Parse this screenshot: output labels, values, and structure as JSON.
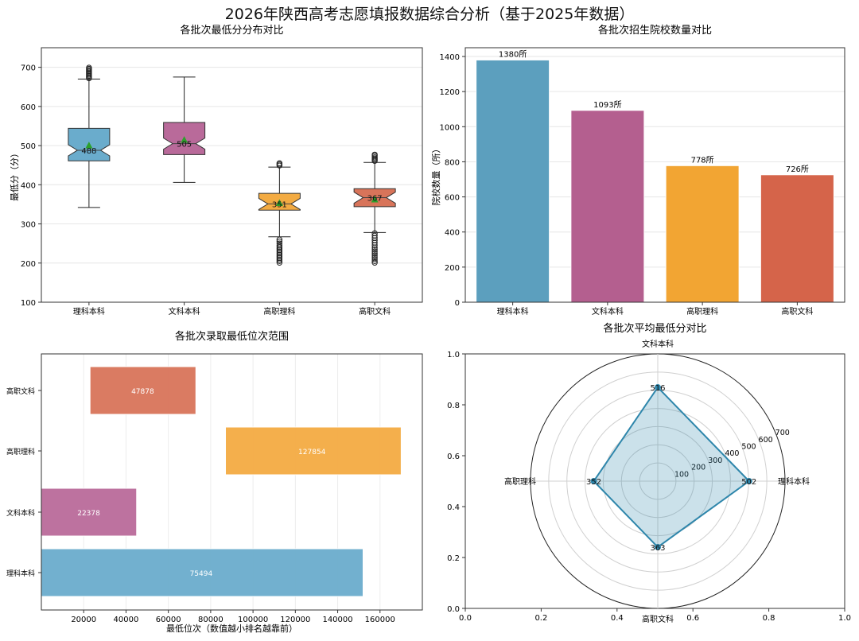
{
  "title": "2026年陕西高考志愿填报数据综合分析（基于2025年数据）",
  "chart_data": [
    {
      "type": "box",
      "title": "各批次最低分分布对比",
      "ylabel": "最低分（分）",
      "ylim": [
        100,
        750
      ],
      "yticks": [
        100,
        200,
        300,
        400,
        500,
        600,
        700
      ],
      "grid": true,
      "categories": [
        "理科本科",
        "文科本科",
        "高职理科",
        "高职文科"
      ],
      "colors": [
        "#6aaccc",
        "#b96a9a",
        "#f3ab42",
        "#d8745a"
      ],
      "boxes": [
        {
          "whisker_low": 342,
          "q1": 461,
          "median": 488,
          "q3": 544,
          "whisker_high": 670,
          "mean": 500,
          "outliers": [
            672,
            675,
            678,
            681,
            684,
            687,
            690,
            693,
            696,
            699
          ]
        },
        {
          "whisker_low": 406,
          "q1": 477,
          "median": 505,
          "q3": 559,
          "whisker_high": 675,
          "mean": 514,
          "outliers": []
        },
        {
          "whisker_low": 267,
          "q1": 335,
          "median": 351,
          "q3": 378,
          "whisker_high": 445,
          "mean": 353,
          "outliers": [
            449,
            452,
            455,
            201,
            205,
            209,
            213,
            217,
            221,
            225,
            229,
            233,
            237,
            241,
            245,
            250,
            255,
            260
          ]
        },
        {
          "whisker_low": 278,
          "q1": 344,
          "median": 367,
          "q3": 390,
          "whisker_high": 457,
          "mean": 362,
          "outliers": [
            461,
            464,
            467,
            470,
            474,
            477,
            201,
            205,
            210,
            215,
            220,
            225,
            230,
            235,
            240,
            246,
            252,
            258,
            264,
            270,
            276
          ]
        }
      ],
      "median_labels": [
        "488",
        "505",
        "351",
        "367"
      ]
    },
    {
      "type": "bar",
      "title": "各批次招生院校数量对比",
      "ylabel": "院校数量（所）",
      "ylim": [
        0,
        1450
      ],
      "yticks": [
        0,
        200,
        400,
        600,
        800,
        1000,
        1200,
        1400
      ],
      "grid": true,
      "categories": [
        "理科本科",
        "文科本科",
        "高职理科",
        "高职文科"
      ],
      "values": [
        1380,
        1093,
        778,
        726
      ],
      "data_labels": [
        "1380所",
        "1093所",
        "778所",
        "726所"
      ],
      "colors": [
        "#5c9fbe",
        "#b45f8f",
        "#f2a533",
        "#d5644a"
      ]
    },
    {
      "type": "bar",
      "title": "各批次录取最低位次范围",
      "xlabel": "最低位次（数值越小排名越靠前）",
      "xlim": [
        0,
        180000
      ],
      "xticks": [
        20000,
        40000,
        60000,
        80000,
        100000,
        120000,
        140000,
        160000
      ],
      "grid": true,
      "categories": [
        "理科本科",
        "文科本科",
        "高职理科",
        "高职文科"
      ],
      "ranges": [
        [
          0,
          152000
        ],
        [
          0,
          45000
        ],
        [
          87000,
          170000
        ],
        [
          23000,
          73000
        ]
      ],
      "medians": [
        75494,
        22378,
        127854,
        47878
      ],
      "data_labels": [
        "75494",
        "22378",
        "127854",
        "47878"
      ],
      "colors": [
        "#6aaccc",
        "#b96a9a",
        "#f3ab42",
        "#d8745a"
      ]
    },
    {
      "type": "radar",
      "title": "各批次平均最低分对比",
      "axes": [
        "理科本科",
        "文科本科",
        "高职理科",
        "高职文科"
      ],
      "values": [
        502,
        516,
        352,
        363
      ],
      "value_labels": [
        "502",
        "516",
        "352",
        "363"
      ],
      "rlim": [
        0,
        700
      ],
      "rticks": [
        100,
        200,
        300,
        400,
        500,
        600,
        700
      ],
      "frame_ticks": [
        "0.0",
        "0.2",
        "0.4",
        "0.6",
        "0.8",
        "1.0"
      ],
      "color": "#2e86ab"
    }
  ]
}
